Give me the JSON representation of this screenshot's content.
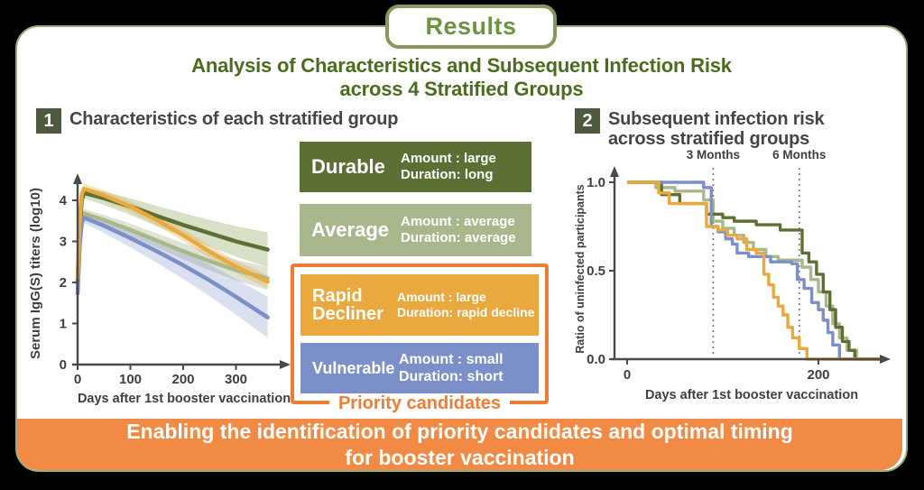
{
  "results_label": "Results",
  "heading": {
    "line1": "Analysis of Characteristics and Subsequent Infection Risk",
    "line2": "across 4 Stratified Groups"
  },
  "sections": {
    "one": {
      "number": "1",
      "title": "Characteristics of each stratified group"
    },
    "two": {
      "number": "2",
      "title_line1": "Subsequent infection risk",
      "title_line2": "across stratified groups"
    }
  },
  "legend": {
    "groups": [
      {
        "name": "Durable",
        "amount": "Amount : large",
        "duration": "Duration: long",
        "color": "#5c7033"
      },
      {
        "name": "Average",
        "amount": "Amount : average",
        "duration": "Duration: average",
        "color": "#a9b88c"
      },
      {
        "name": "Rapid Decliner",
        "amount": "Amount : large",
        "duration": "Duration: rapid decline",
        "color": "#e9a93f"
      },
      {
        "name": "Vulnerable",
        "amount": "Amount : small",
        "duration": "Duration: short",
        "color": "#7b8fc9"
      }
    ],
    "priority_label": "Priority candidates",
    "priority_color": "#ee7c35"
  },
  "banner": {
    "line1": "Enabling the identification of priority candidates and optimal timing",
    "line2": "for booster vaccination",
    "bg": "#f08a45"
  },
  "colors": {
    "heading_green": "#4a6c1e",
    "results_green": "#6d9340",
    "card_border": "#99a77c",
    "number_badge_bg": "#4e5a3e",
    "accent_orange": "#ee7c35",
    "durable": "#5c7033",
    "average": "#a9b88c",
    "rapid_decliner": "#e9a93f",
    "vulnerable": "#7b8fc9"
  },
  "chart_data": [
    {
      "type": "line",
      "title": "Antibody titer trajectories of the 4 stratified groups",
      "xlabel": "Days after 1st booster vaccination",
      "ylabel": "Serum IgG(S) titers (log10)",
      "x_ticks": [
        0,
        100,
        200,
        300
      ],
      "y_ticks": [
        0,
        1,
        2,
        3,
        4
      ],
      "xlim": [
        0,
        395
      ],
      "ylim": [
        0,
        4.6
      ],
      "grid": false,
      "series": [
        {
          "name": "Average",
          "color": "#a9b88c",
          "band_color": "#a9b88c",
          "band_opacity": 0.38,
          "band_start": 0.1,
          "band_end": 0.28,
          "points": [
            [
              0,
              1.95
            ],
            [
              4,
              3.1
            ],
            [
              8,
              3.6
            ],
            [
              12,
              3.68
            ],
            [
              50,
              3.52
            ],
            [
              100,
              3.28
            ],
            [
              150,
              3.02
            ],
            [
              200,
              2.76
            ],
            [
              250,
              2.52
            ],
            [
              300,
              2.3
            ],
            [
              360,
              2.1
            ]
          ]
        },
        {
          "name": "Durable",
          "color": "#5c7033",
          "band_color": "#8fa55e",
          "band_opacity": 0.35,
          "band_start": 0.12,
          "band_end": 0.42,
          "points": [
            [
              0,
              2.0
            ],
            [
              4,
              3.3
            ],
            [
              8,
              4.0
            ],
            [
              12,
              4.18
            ],
            [
              50,
              4.05
            ],
            [
              100,
              3.85
            ],
            [
              150,
              3.62
            ],
            [
              200,
              3.4
            ],
            [
              250,
              3.2
            ],
            [
              300,
              3.0
            ],
            [
              360,
              2.8
            ]
          ]
        },
        {
          "name": "Vulnerable",
          "color": "#7b8fc9",
          "band_color": "#7b8fc9",
          "band_opacity": 0.28,
          "band_start": 0.12,
          "band_end": 0.5,
          "points": [
            [
              0,
              1.73
            ],
            [
              4,
              2.9
            ],
            [
              8,
              3.45
            ],
            [
              12,
              3.58
            ],
            [
              50,
              3.38
            ],
            [
              100,
              3.08
            ],
            [
              150,
              2.76
            ],
            [
              200,
              2.42
            ],
            [
              250,
              2.05
            ],
            [
              300,
              1.65
            ],
            [
              360,
              1.15
            ]
          ]
        },
        {
          "name": "Rapid Decliner",
          "color": "#e9a93f",
          "band_color": "#e9a93f",
          "band_opacity": 0.32,
          "band_start": 0.12,
          "band_end": 0.16,
          "points": [
            [
              0,
              2.12
            ],
            [
              4,
              3.5
            ],
            [
              8,
              4.15
            ],
            [
              12,
              4.28
            ],
            [
              50,
              4.12
            ],
            [
              100,
              3.85
            ],
            [
              150,
              3.52
            ],
            [
              200,
              3.15
            ],
            [
              250,
              2.75
            ],
            [
              300,
              2.38
            ],
            [
              360,
              2.02
            ]
          ]
        }
      ]
    },
    {
      "type": "step",
      "title": "Kaplan-Meier style curves of uninfected ratio per group",
      "xlabel": "Days after 1st booster vaccination",
      "ylabel": "Ratio of uninfected participants",
      "x_ticks": [
        0,
        200
      ],
      "y_ticks": [
        0.0,
        0.5,
        1.0
      ],
      "xlim": [
        0,
        270
      ],
      "ylim": [
        0,
        1.0
      ],
      "grid": false,
      "vlines": [
        {
          "day": 90,
          "label": "3 Months"
        },
        {
          "day": 180,
          "label": "6 Months"
        }
      ],
      "series": [
        {
          "name": "Average",
          "color": "#a9b88c",
          "steps": [
            [
              0,
              1.0
            ],
            [
              30,
              0.97
            ],
            [
              50,
              0.95
            ],
            [
              80,
              0.9
            ],
            [
              90,
              0.78
            ],
            [
              100,
              0.74
            ],
            [
              112,
              0.7
            ],
            [
              122,
              0.66
            ],
            [
              132,
              0.62
            ],
            [
              145,
              0.58
            ],
            [
              158,
              0.56
            ],
            [
              183,
              0.52
            ],
            [
              192,
              0.45
            ],
            [
              200,
              0.38
            ],
            [
              208,
              0.3
            ],
            [
              215,
              0.2
            ],
            [
              222,
              0.12
            ],
            [
              230,
              0.05
            ],
            [
              240,
              0.0
            ]
          ]
        },
        {
          "name": "Durable",
          "color": "#5c7033",
          "steps": [
            [
              0,
              1.0
            ],
            [
              36,
              0.93
            ],
            [
              55,
              0.88
            ],
            [
              83,
              0.82
            ],
            [
              100,
              0.8
            ],
            [
              112,
              0.78
            ],
            [
              135,
              0.76
            ],
            [
              160,
              0.73
            ],
            [
              183,
              0.6
            ],
            [
              190,
              0.55
            ],
            [
              198,
              0.48
            ],
            [
              205,
              0.38
            ],
            [
              212,
              0.28
            ],
            [
              218,
              0.18
            ],
            [
              225,
              0.1
            ],
            [
              232,
              0.05
            ],
            [
              238,
              0.0
            ]
          ]
        },
        {
          "name": "Vulnerable",
          "color": "#7b8fc9",
          "steps": [
            [
              0,
              1.0
            ],
            [
              80,
              0.97
            ],
            [
              88,
              0.75
            ],
            [
              95,
              0.72
            ],
            [
              103,
              0.68
            ],
            [
              110,
              0.65
            ],
            [
              115,
              0.6
            ],
            [
              127,
              0.58
            ],
            [
              150,
              0.55
            ],
            [
              172,
              0.54
            ],
            [
              178,
              0.45
            ],
            [
              185,
              0.4
            ],
            [
              193,
              0.32
            ],
            [
              200,
              0.28
            ],
            [
              205,
              0.22
            ],
            [
              210,
              0.15
            ],
            [
              215,
              0.08
            ],
            [
              222,
              0.0
            ]
          ]
        },
        {
          "name": "Rapid Decliner",
          "color": "#e9a93f",
          "steps": [
            [
              0,
              1.0
            ],
            [
              33,
              0.94
            ],
            [
              44,
              0.88
            ],
            [
              83,
              0.75
            ],
            [
              95,
              0.73
            ],
            [
              105,
              0.7
            ],
            [
              115,
              0.68
            ],
            [
              125,
              0.62
            ],
            [
              135,
              0.6
            ],
            [
              143,
              0.48
            ],
            [
              148,
              0.42
            ],
            [
              153,
              0.35
            ],
            [
              158,
              0.3
            ],
            [
              163,
              0.25
            ],
            [
              168,
              0.18
            ],
            [
              173,
              0.12
            ],
            [
              180,
              0.06
            ],
            [
              188,
              0.0
            ]
          ]
        }
      ]
    }
  ]
}
